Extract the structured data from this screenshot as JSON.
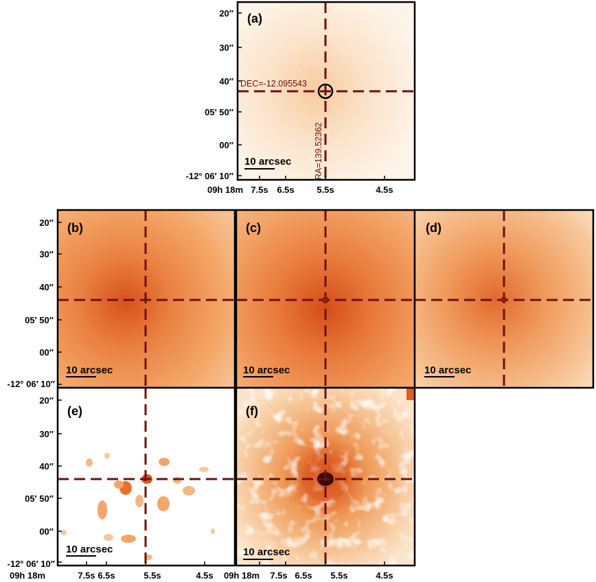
{
  "colors": {
    "crosshair": "#6e0f0f",
    "frame": "#000000",
    "background": "#ffffff",
    "map_light": "#fcefdf",
    "map_mid": "#f4a66a",
    "map_dark": "#d6531a"
  },
  "figure": {
    "scale_bar_label": "10 arcsec",
    "dec_ticks": [
      "20″",
      "30″",
      "40″",
      "05′ 50″",
      "00″",
      "-12° 06′ 10″"
    ],
    "ra_ticks": [
      "09h 18m",
      "7.5s",
      "6.5s",
      "5.5s",
      "4.5s"
    ],
    "annotation_dec": "DEC=-12.095543",
    "annotation_ra": "RA=139.52362",
    "panels": [
      {
        "letter": "(a)"
      },
      {
        "letter": "(b)"
      },
      {
        "letter": "(c)"
      },
      {
        "letter": "(d)"
      },
      {
        "letter": "(e)"
      },
      {
        "letter": "(f)"
      }
    ]
  }
}
